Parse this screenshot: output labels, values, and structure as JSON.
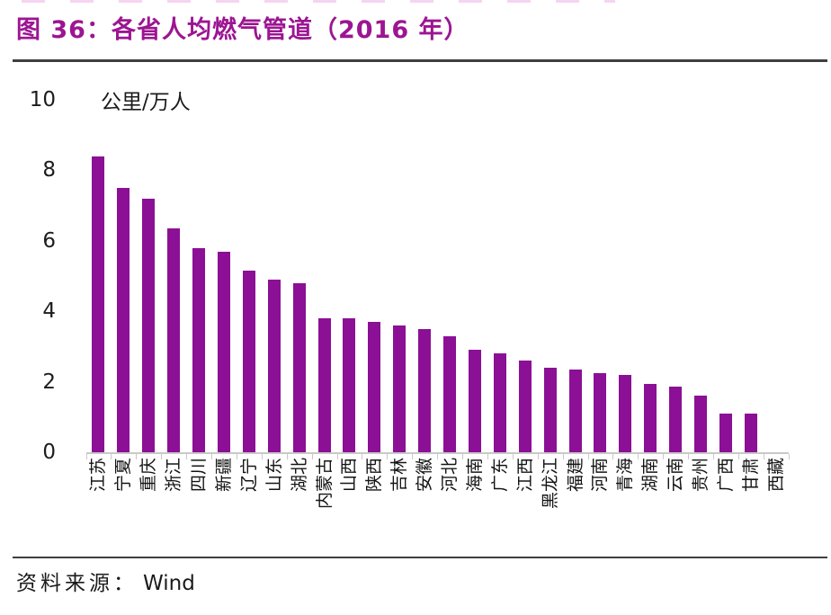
{
  "header": {
    "title": "图 36：各省人均燃气管道（2016 年）"
  },
  "chart_data": {
    "type": "bar",
    "title": "图 36：各省人均燃气管道（2016 年）",
    "unit_label": "公里/万人",
    "categories": [
      "江苏",
      "宁夏",
      "重庆",
      "浙江",
      "四川",
      "新疆",
      "辽宁",
      "山东",
      "湖北",
      "内蒙古",
      "山西",
      "陕西",
      "吉林",
      "安徽",
      "河北",
      "海南",
      "广东",
      "江西",
      "黑龙江",
      "福建",
      "河南",
      "青海",
      "湖南",
      "云南",
      "贵州",
      "广西",
      "甘肃",
      "西藏"
    ],
    "values": [
      8.4,
      7.5,
      7.2,
      6.35,
      5.8,
      5.7,
      5.15,
      4.9,
      4.8,
      3.8,
      3.8,
      3.7,
      3.6,
      3.5,
      3.3,
      2.9,
      2.8,
      2.6,
      2.4,
      2.35,
      2.25,
      2.2,
      1.95,
      1.85,
      1.6,
      1.1,
      1.1,
      0
    ],
    "ylim": [
      0,
      10
    ],
    "yticks": [
      0,
      2,
      4,
      6,
      8,
      10
    ],
    "xlabel": "",
    "ylabel": "公里/万人",
    "grid": false,
    "legend": "none",
    "bar_color": "#8B1095",
    "axis_color": "#c9c9c9"
  },
  "footer": {
    "source_label": "资料来源：",
    "source_value": "Wind"
  }
}
